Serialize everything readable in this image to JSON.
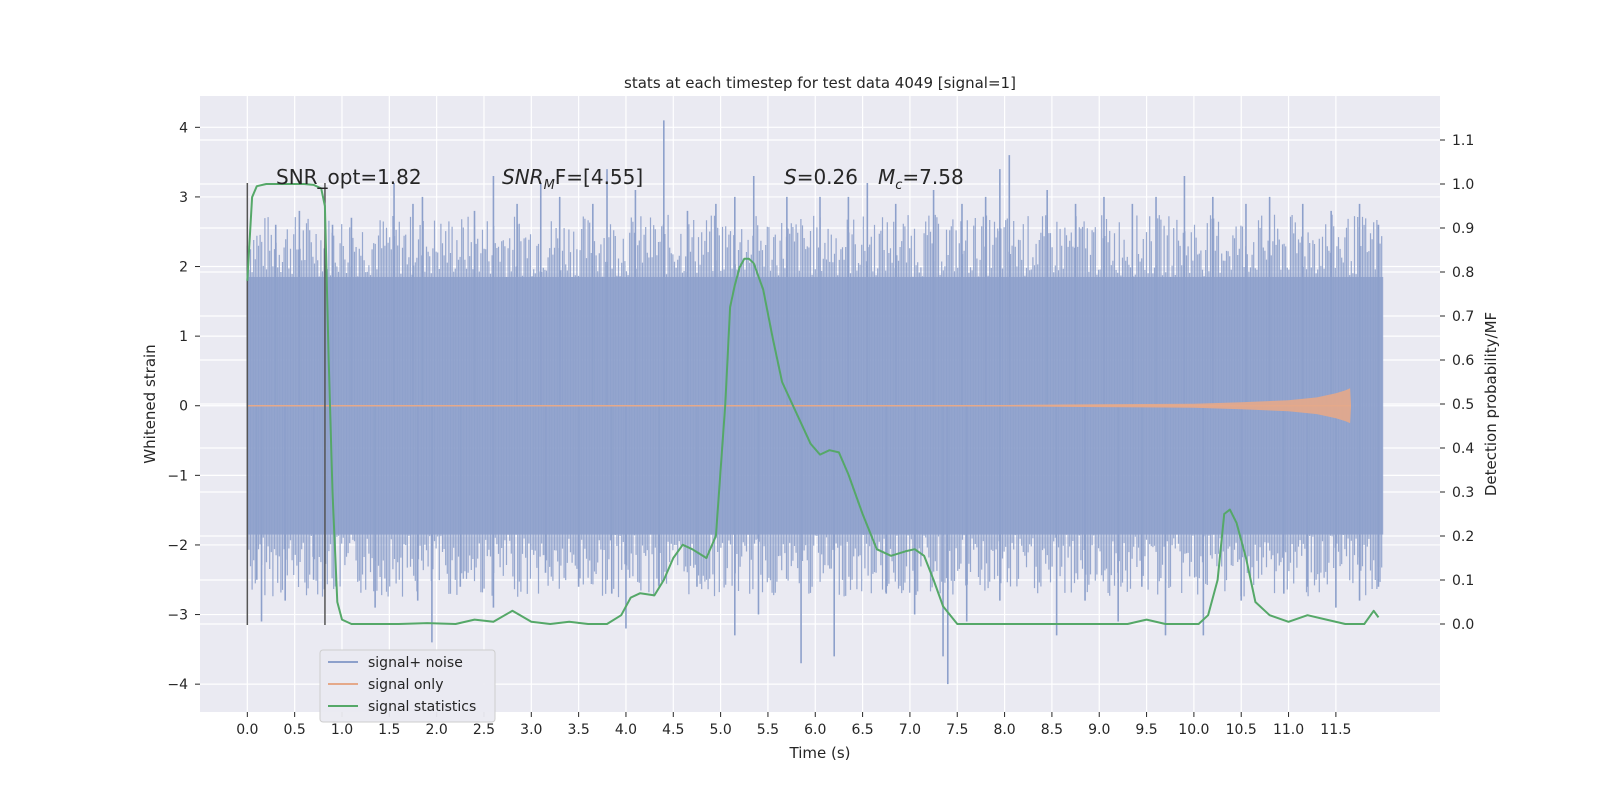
{
  "chart_data": {
    "type": "line",
    "title": "stats at each timestep for test data 4049 [signal=1]",
    "xlabel": "Time (s)",
    "ylabel": "Whitened strain",
    "ylabel_right": "Detection probability/MF",
    "xlim": [
      -0.5,
      12.6
    ],
    "ylim": [
      -4.4,
      4.45
    ],
    "ylim_right": [
      -0.2,
      1.2
    ],
    "x_ticks": [
      "0.0",
      "0.5",
      "1.0",
      "1.5",
      "2.0",
      "2.5",
      "3.0",
      "3.5",
      "4.0",
      "4.5",
      "5.0",
      "5.5",
      "6.0",
      "6.5",
      "7.0",
      "7.5",
      "8.0",
      "8.5",
      "9.0",
      "9.5",
      "10.0",
      "10.5",
      "11.0",
      "11.5"
    ],
    "y_ticks": [
      "−4",
      "−3",
      "−2",
      "−1",
      "0",
      "1",
      "2",
      "3",
      "4"
    ],
    "y_ticks_right": [
      "0.0",
      "0.1",
      "0.2",
      "0.3",
      "0.4",
      "0.5",
      "0.6",
      "0.7",
      "0.8",
      "0.9",
      "1.0",
      "1.1"
    ],
    "grid": true,
    "legend_position": "lower-left",
    "annotations": {
      "snr_opt": "SNR_opt=1.82",
      "snr_mf": "SNR",
      "snr_mf_sub": "M",
      "snr_mf_rest": "F=[4.55]",
      "s_label": "S",
      "s_value": "=0.26",
      "mc_label": "M",
      "mc_sub": "c",
      "mc_value": "=7.58"
    },
    "markers": [
      {
        "x": 0.0,
        "y_range": [
          -3.15,
          3.2
        ]
      },
      {
        "x": 0.82,
        "y_range": [
          -3.15,
          3.2
        ]
      }
    ],
    "series": [
      {
        "name": "signal+ noise",
        "color": "#8da0cb",
        "x_range": [
          0.0,
          12.0
        ],
        "band_envelope": [
          -1.85,
          1.85
        ],
        "spikes_up": [
          [
            0.0,
            2.3
          ],
          [
            0.3,
            2.6
          ],
          [
            0.55,
            2.8
          ],
          [
            0.9,
            2.6
          ],
          [
            1.1,
            2.7
          ],
          [
            1.55,
            3.2
          ],
          [
            1.75,
            2.9
          ],
          [
            1.85,
            3.0
          ],
          [
            2.4,
            2.8
          ],
          [
            2.6,
            3.3
          ],
          [
            2.85,
            2.9
          ],
          [
            3.1,
            3.2
          ],
          [
            3.3,
            3.0
          ],
          [
            3.65,
            2.9
          ],
          [
            3.8,
            3.4
          ],
          [
            4.1,
            3.1
          ],
          [
            4.4,
            4.1
          ],
          [
            4.65,
            2.8
          ],
          [
            4.95,
            2.9
          ],
          [
            5.15,
            3.0
          ],
          [
            5.35,
            3.3
          ],
          [
            5.7,
            3.0
          ],
          [
            6.05,
            3.0
          ],
          [
            6.35,
            3.0
          ],
          [
            6.55,
            3.2
          ],
          [
            6.85,
            2.9
          ],
          [
            7.25,
            3.1
          ],
          [
            7.55,
            2.9
          ],
          [
            7.8,
            3.0
          ],
          [
            7.95,
            3.4
          ],
          [
            8.05,
            3.6
          ],
          [
            8.45,
            3.1
          ],
          [
            8.75,
            2.9
          ],
          [
            9.05,
            3.0
          ],
          [
            9.35,
            2.9
          ],
          [
            9.6,
            3.0
          ],
          [
            9.9,
            3.3
          ],
          [
            10.2,
            3.0
          ],
          [
            10.55,
            2.9
          ],
          [
            10.8,
            3.0
          ],
          [
            11.15,
            2.9
          ],
          [
            11.45,
            2.8
          ],
          [
            11.75,
            2.9
          ],
          [
            11.95,
            2.6
          ]
        ],
        "spikes_down": [
          [
            0.1,
            -2.5
          ],
          [
            0.15,
            -3.1
          ],
          [
            0.4,
            -2.8
          ],
          [
            0.7,
            -2.5
          ],
          [
            1.35,
            -2.9
          ],
          [
            1.8,
            -2.8
          ],
          [
            1.95,
            -3.4
          ],
          [
            2.25,
            -2.6
          ],
          [
            2.6,
            -2.9
          ],
          [
            3.15,
            -2.4
          ],
          [
            3.5,
            -2.6
          ],
          [
            3.85,
            -2.7
          ],
          [
            4.0,
            -3.2
          ],
          [
            4.35,
            -2.6
          ],
          [
            4.75,
            -2.6
          ],
          [
            5.15,
            -3.3
          ],
          [
            5.4,
            -3.0
          ],
          [
            5.85,
            -3.7
          ],
          [
            6.2,
            -3.6
          ],
          [
            6.75,
            -2.7
          ],
          [
            7.05,
            -3.0
          ],
          [
            7.35,
            -3.6
          ],
          [
            7.4,
            -4.0
          ],
          [
            7.6,
            -3.1
          ],
          [
            7.95,
            -2.8
          ],
          [
            8.55,
            -3.3
          ],
          [
            8.85,
            -2.8
          ],
          [
            9.2,
            -3.1
          ],
          [
            9.45,
            -2.6
          ],
          [
            9.7,
            -3.3
          ],
          [
            10.1,
            -3.3
          ],
          [
            10.5,
            -2.8
          ],
          [
            10.95,
            -2.7
          ],
          [
            11.2,
            -2.6
          ],
          [
            11.5,
            -2.9
          ],
          [
            11.75,
            -2.8
          ],
          [
            11.95,
            -2.6
          ]
        ]
      },
      {
        "name": "signal only",
        "color": "#e5a98a",
        "x": [
          0.0,
          8.0,
          9.0,
          10.0,
          10.5,
          11.0,
          11.3,
          11.5,
          11.6,
          11.65,
          11.66
        ],
        "amplitude": [
          0.005,
          0.01,
          0.02,
          0.03,
          0.05,
          0.08,
          0.12,
          0.18,
          0.22,
          0.25,
          0.02
        ]
      },
      {
        "name": "signal statistics",
        "color": "#55a868",
        "axis": "right",
        "x": [
          0.0,
          0.05,
          0.1,
          0.2,
          0.3,
          0.4,
          0.5,
          0.6,
          0.7,
          0.78,
          0.82,
          0.86,
          0.9,
          0.95,
          1.0,
          1.1,
          1.3,
          1.6,
          1.9,
          2.2,
          2.4,
          2.6,
          2.8,
          3.0,
          3.2,
          3.4,
          3.6,
          3.8,
          3.95,
          4.05,
          4.15,
          4.3,
          4.4,
          4.5,
          4.6,
          4.7,
          4.85,
          4.95,
          5.05,
          5.1,
          5.15,
          5.2,
          5.25,
          5.3,
          5.35,
          5.45,
          5.55,
          5.65,
          5.8,
          5.95,
          6.05,
          6.15,
          6.25,
          6.35,
          6.5,
          6.65,
          6.8,
          6.95,
          7.05,
          7.15,
          7.25,
          7.35,
          7.5,
          8.0,
          8.5,
          9.0,
          9.3,
          9.5,
          9.7,
          9.9,
          10.05,
          10.15,
          10.25,
          10.32,
          10.38,
          10.45,
          10.55,
          10.65,
          10.8,
          11.0,
          11.2,
          11.4,
          11.6,
          11.8,
          11.9,
          11.95
        ],
        "y": [
          0.78,
          0.97,
          0.995,
          1.0,
          1.0,
          1.0,
          1.0,
          1.0,
          0.998,
          0.99,
          0.95,
          0.6,
          0.3,
          0.05,
          0.01,
          0.0,
          0.0,
          0.0,
          0.002,
          0.0,
          0.01,
          0.005,
          0.03,
          0.005,
          0.0,
          0.005,
          0.0,
          0.0,
          0.02,
          0.06,
          0.07,
          0.065,
          0.1,
          0.15,
          0.18,
          0.17,
          0.15,
          0.2,
          0.5,
          0.72,
          0.77,
          0.81,
          0.83,
          0.83,
          0.82,
          0.76,
          0.65,
          0.55,
          0.48,
          0.41,
          0.385,
          0.395,
          0.39,
          0.34,
          0.25,
          0.17,
          0.155,
          0.165,
          0.17,
          0.155,
          0.1,
          0.04,
          0.0,
          0.0,
          0.0,
          0.0,
          0.0,
          0.01,
          0.0,
          0.0,
          0.0,
          0.02,
          0.1,
          0.25,
          0.26,
          0.23,
          0.15,
          0.05,
          0.02,
          0.005,
          0.02,
          0.01,
          0.0,
          0.0,
          0.03,
          0.015
        ]
      }
    ]
  }
}
